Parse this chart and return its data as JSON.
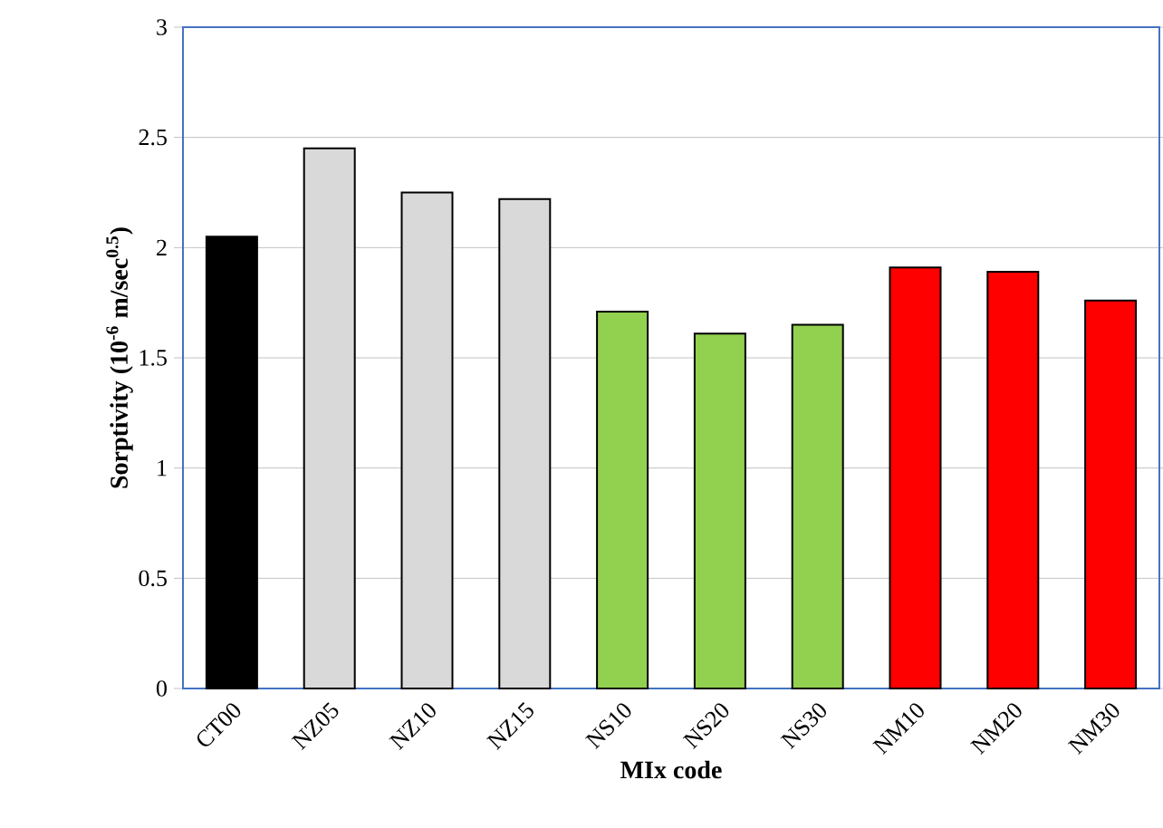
{
  "chart_data": {
    "type": "bar",
    "xlabel": "MIx code",
    "ylabel": "Sorptivity (10$^{-6}$ m/sec$^{0.5}$)",
    "categories": [
      "CT00",
      "NZ05",
      "NZ10",
      "NZ15",
      "NS10",
      "NS20",
      "NS30",
      "NM10",
      "NM20",
      "NM30"
    ],
    "values": [
      2.05,
      2.45,
      2.25,
      2.22,
      1.71,
      1.61,
      1.65,
      1.91,
      1.89,
      1.76
    ],
    "colors": [
      "#000000",
      "#d9d9d9",
      "#d9d9d9",
      "#d9d9d9",
      "#92d050",
      "#92d050",
      "#92d050",
      "#ff0000",
      "#ff0000",
      "#ff0000"
    ],
    "ylim": [
      0,
      3
    ],
    "yticks": [
      0,
      0.5,
      1,
      1.5,
      2,
      2.5,
      3
    ],
    "grid": "y"
  }
}
